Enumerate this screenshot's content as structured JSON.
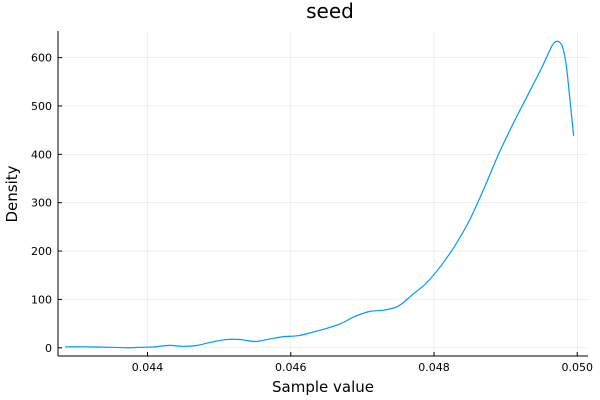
{
  "chart_data": {
    "type": "line",
    "title": "seed",
    "xlabel": "Sample value",
    "ylabel": "Density",
    "xlim": [
      0.04275,
      0.05015
    ],
    "ylim": [
      -17,
      655
    ],
    "grid": true,
    "legend": "none",
    "x_ticks": [
      {
        "value": 0.044,
        "label": "0.044"
      },
      {
        "value": 0.046,
        "label": "0.046"
      },
      {
        "value": 0.048,
        "label": "0.048"
      },
      {
        "value": 0.05,
        "label": "0.050"
      }
    ],
    "y_ticks": [
      {
        "value": 0,
        "label": "0"
      },
      {
        "value": 100,
        "label": "100"
      },
      {
        "value": 200,
        "label": "200"
      },
      {
        "value": 300,
        "label": "300"
      },
      {
        "value": 400,
        "label": "400"
      },
      {
        "value": 500,
        "label": "500"
      },
      {
        "value": 600,
        "label": "600"
      }
    ],
    "series": [
      {
        "color": "#009af9",
        "x": [
          0.04285,
          0.0431,
          0.0435,
          0.0437,
          0.0439,
          0.0441,
          0.0443,
          0.0445,
          0.0447,
          0.0449,
          0.0451,
          0.0453,
          0.0455,
          0.0457,
          0.0459,
          0.0461,
          0.0463,
          0.0465,
          0.0467,
          0.0469,
          0.0471,
          0.0473,
          0.0475,
          0.0477,
          0.0479,
          0.0481,
          0.0483,
          0.0485,
          0.0487,
          0.0489,
          0.0491,
          0.0493,
          0.0495,
          0.0496,
          0.04965,
          0.0497,
          0.04975,
          0.0498,
          0.04985,
          0.0499,
          0.04995
        ],
        "y": [
          2,
          2,
          1,
          0,
          1,
          2,
          5,
          3,
          5,
          12,
          17,
          17,
          13,
          18,
          23,
          25,
          32,
          40,
          50,
          65,
          75,
          78,
          86,
          110,
          135,
          170,
          213,
          265,
          330,
          400,
          462,
          520,
          578,
          610,
          625,
          633,
          632,
          620,
          580,
          510,
          438
        ]
      }
    ]
  }
}
